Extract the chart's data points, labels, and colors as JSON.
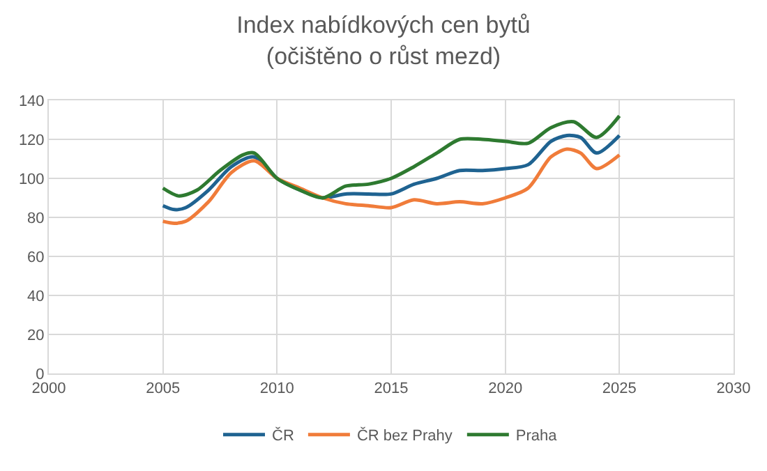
{
  "chart_data": {
    "type": "line",
    "title": "Index nabídkových cen bytů\n(očištěno o růst mezd)",
    "series": [
      {
        "name": "ČR",
        "color": "#1f6391",
        "x": [
          2005,
          2005.5,
          2006,
          2007,
          2008,
          2009,
          2010,
          2011,
          2012,
          2013,
          2014,
          2015,
          2016,
          2017,
          2018,
          2019,
          2020,
          2021,
          2022,
          2022.7,
          2023.3,
          2024,
          2025
        ],
        "values": [
          86,
          84,
          85,
          94,
          106,
          111,
          100,
          94,
          90,
          92,
          92,
          92,
          97,
          100,
          104,
          104,
          105,
          107,
          119,
          122,
          121,
          113,
          122
        ]
      },
      {
        "name": "ČR bez Prahy",
        "color": "#f07c3a",
        "x": [
          2005,
          2005.5,
          2006,
          2007,
          2008,
          2009,
          2010,
          2011,
          2012,
          2013,
          2014,
          2015,
          2016,
          2017,
          2018,
          2019,
          2020,
          2021,
          2022,
          2022.7,
          2023.3,
          2024,
          2025
        ],
        "values": [
          78,
          77,
          78,
          88,
          103,
          109,
          100,
          95,
          90,
          87,
          86,
          85,
          89,
          87,
          88,
          87,
          90,
          95,
          111,
          115,
          113,
          105,
          112
        ]
      },
      {
        "name": "Praha",
        "color": "#2e7a30",
        "x": [
          2005,
          2005.7,
          2006.5,
          2007.5,
          2008.5,
          2009,
          2010,
          2011,
          2012,
          2013,
          2014,
          2015,
          2016,
          2017,
          2018,
          2019,
          2020,
          2021,
          2022,
          2023,
          2024,
          2025
        ],
        "values": [
          95,
          91,
          94,
          104,
          112,
          113,
          100,
          94,
          90,
          96,
          97,
          100,
          106,
          113,
          120,
          120,
          119,
          118,
          126,
          129,
          121,
          132
        ]
      }
    ],
    "xlim": [
      2000,
      2030
    ],
    "xticks": [
      2000,
      2005,
      2010,
      2015,
      2020,
      2025,
      2030
    ],
    "ylim": [
      0,
      140
    ],
    "yticks": [
      0,
      20,
      40,
      60,
      80,
      100,
      120,
      140
    ],
    "grid": true,
    "legend": "bottom",
    "marker": "none",
    "line_style": "solid"
  }
}
